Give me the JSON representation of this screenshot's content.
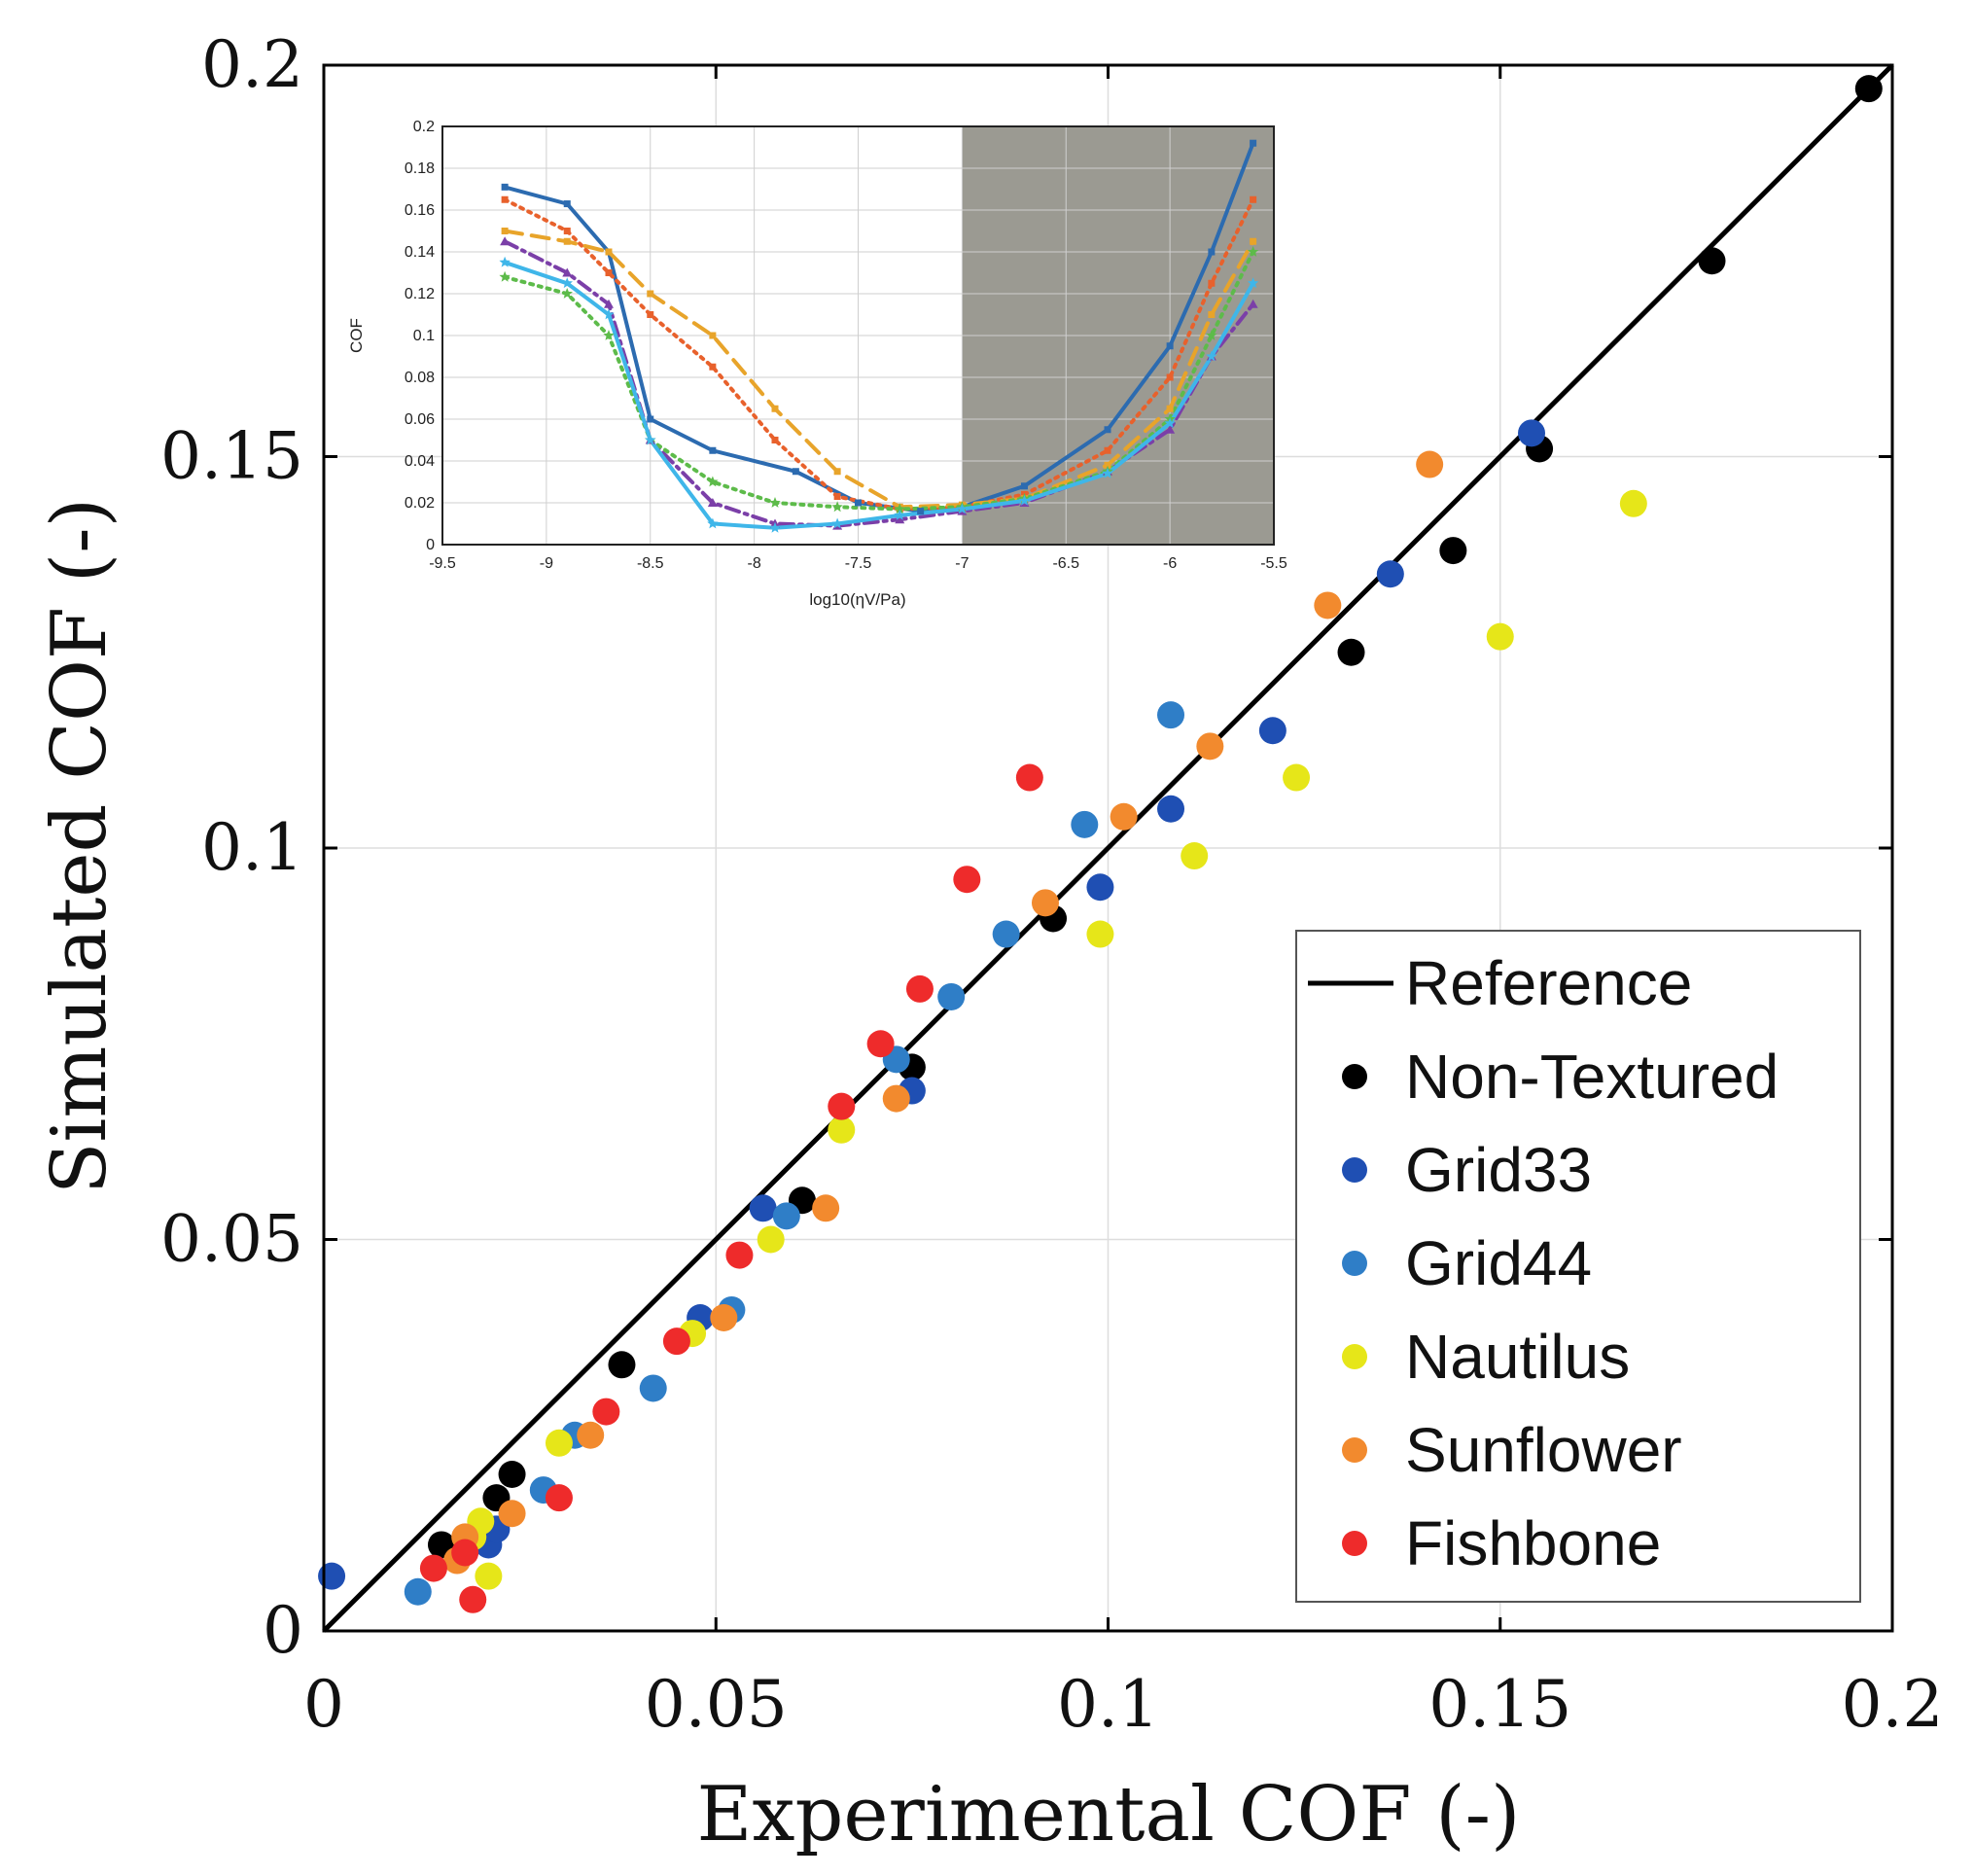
{
  "chart_data": [
    {
      "type": "scatter",
      "xlabel": "Experimental COF (-)",
      "ylabel": "Simulated COF (-)",
      "xlim": [
        0,
        0.2
      ],
      "ylim": [
        0,
        0.2
      ],
      "xticks": [
        "0",
        "0.05",
        "0.1",
        "0.15",
        "0.2"
      ],
      "yticks": [
        "0",
        "0.05",
        "0.1",
        "0.15",
        "0.2"
      ],
      "grid": true,
      "legend_position": "bottom-right",
      "reference": {
        "name": "Reference",
        "color": "#000000",
        "x": [
          0,
          0.2
        ],
        "y": [
          0,
          0.2
        ]
      },
      "series": [
        {
          "name": "Non-Textured",
          "color": "#000000",
          "points": [
            [
              0.197,
              0.197
            ],
            [
              0.177,
              0.175
            ],
            [
              0.155,
              0.151
            ],
            [
              0.144,
              0.138
            ],
            [
              0.131,
              0.125
            ],
            [
              0.093,
              0.091
            ],
            [
              0.075,
              0.072
            ],
            [
              0.061,
              0.055
            ],
            [
              0.038,
              0.034
            ],
            [
              0.024,
              0.02
            ],
            [
              0.022,
              0.017
            ],
            [
              0.015,
              0.011
            ]
          ]
        },
        {
          "name": "Grid33",
          "color": "#1f4fb3",
          "points": [
            [
              0.154,
              0.153
            ],
            [
              0.136,
              0.135
            ],
            [
              0.121,
              0.115
            ],
            [
              0.108,
              0.105
            ],
            [
              0.099,
              0.095
            ],
            [
              0.075,
              0.069
            ],
            [
              0.056,
              0.054
            ],
            [
              0.048,
              0.04
            ],
            [
              0.021,
              0.011
            ],
            [
              0.001,
              0.007
            ],
            [
              0.022,
              0.013
            ]
          ]
        },
        {
          "name": "Grid44",
          "color": "#2f7ec7",
          "points": [
            [
              0.108,
              0.117
            ],
            [
              0.097,
              0.103
            ],
            [
              0.087,
              0.089
            ],
            [
              0.08,
              0.081
            ],
            [
              0.073,
              0.073
            ],
            [
              0.059,
              0.053
            ],
            [
              0.052,
              0.041
            ],
            [
              0.042,
              0.031
            ],
            [
              0.032,
              0.025
            ],
            [
              0.028,
              0.018
            ],
            [
              0.012,
              0.005
            ]
          ]
        },
        {
          "name": "Nautilus",
          "color": "#e6e619",
          "points": [
            [
              0.167,
              0.144
            ],
            [
              0.15,
              0.127
            ],
            [
              0.124,
              0.109
            ],
            [
              0.111,
              0.099
            ],
            [
              0.099,
              0.089
            ],
            [
              0.066,
              0.064
            ],
            [
              0.057,
              0.05
            ],
            [
              0.047,
              0.038
            ],
            [
              0.03,
              0.024
            ],
            [
              0.02,
              0.014
            ],
            [
              0.021,
              0.007
            ],
            [
              0.019,
              0.012
            ]
          ]
        },
        {
          "name": "Sunflower",
          "color": "#f28a2e",
          "points": [
            [
              0.141,
              0.149
            ],
            [
              0.128,
              0.131
            ],
            [
              0.113,
              0.113
            ],
            [
              0.102,
              0.104
            ],
            [
              0.092,
              0.093
            ],
            [
              0.073,
              0.068
            ],
            [
              0.064,
              0.054
            ],
            [
              0.051,
              0.04
            ],
            [
              0.034,
              0.025
            ],
            [
              0.024,
              0.015
            ],
            [
              0.018,
              0.012
            ],
            [
              0.017,
              0.009
            ]
          ]
        },
        {
          "name": "Fishbone",
          "color": "#ee2b2b",
          "points": [
            [
              0.09,
              0.109
            ],
            [
              0.082,
              0.096
            ],
            [
              0.076,
              0.082
            ],
            [
              0.071,
              0.075
            ],
            [
              0.066,
              0.067
            ],
            [
              0.053,
              0.048
            ],
            [
              0.045,
              0.037
            ],
            [
              0.036,
              0.028
            ],
            [
              0.03,
              0.017
            ],
            [
              0.018,
              0.01
            ],
            [
              0.014,
              0.008
            ],
            [
              0.019,
              0.004
            ]
          ]
        }
      ]
    },
    {
      "type": "line",
      "role": "inset",
      "xlabel": "log10(ηV/Pa)",
      "ylabel": "COF",
      "xlim": [
        -9.5,
        -5.5
      ],
      "ylim": [
        0,
        0.2
      ],
      "xticks": [
        "-9.5",
        "-9",
        "-8.5",
        "-8",
        "-7.5",
        "-7",
        "-6.5",
        "-6",
        "-5.5"
      ],
      "yticks": [
        "0",
        "0.02",
        "0.04",
        "0.06",
        "0.08",
        "0.1",
        "0.12",
        "0.14",
        "0.16",
        "0.18",
        "0.2"
      ],
      "shaded_region_x": [
        -7,
        -5.5
      ],
      "shade_color": "#9b9a92",
      "series": [
        {
          "name": "Grid33",
          "color": "#2c6bb0",
          "style": "solid",
          "marker": "square",
          "x": [
            -9.2,
            -8.9,
            -8.7,
            -8.5,
            -8.2,
            -7.8,
            -7.5,
            -7.2,
            -7.0,
            -6.7,
            -6.3,
            -6.0,
            -5.8,
            -5.6
          ],
          "y": [
            0.171,
            0.163,
            0.14,
            0.06,
            0.045,
            0.035,
            0.02,
            0.016,
            0.018,
            0.028,
            0.055,
            0.095,
            0.14,
            0.192
          ]
        },
        {
          "name": "Sunflower",
          "color": "#e8612c",
          "style": "dotted",
          "marker": "square",
          "x": [
            -9.2,
            -8.9,
            -8.7,
            -8.5,
            -8.2,
            -7.9,
            -7.6,
            -7.3,
            -7.0,
            -6.7,
            -6.3,
            -6.0,
            -5.8,
            -5.6
          ],
          "y": [
            0.165,
            0.15,
            0.13,
            0.11,
            0.085,
            0.05,
            0.023,
            0.017,
            0.018,
            0.024,
            0.045,
            0.08,
            0.125,
            0.165
          ]
        },
        {
          "name": "Nautilus",
          "color": "#e8a42a",
          "style": "dashed",
          "marker": "square",
          "x": [
            -9.2,
            -8.9,
            -8.7,
            -8.5,
            -8.2,
            -7.9,
            -7.6,
            -7.3,
            -7.0,
            -6.7,
            -6.3,
            -6.0,
            -5.8,
            -5.6
          ],
          "y": [
            0.15,
            0.145,
            0.14,
            0.12,
            0.1,
            0.065,
            0.035,
            0.018,
            0.019,
            0.022,
            0.038,
            0.065,
            0.11,
            0.145
          ]
        },
        {
          "name": "Grid44",
          "color": "#7b3fa8",
          "style": "dashdot",
          "marker": "triangle",
          "x": [
            -9.2,
            -8.9,
            -8.7,
            -8.5,
            -8.2,
            -7.9,
            -7.6,
            -7.3,
            -7.0,
            -6.7,
            -6.3,
            -6.0,
            -5.8,
            -5.6
          ],
          "y": [
            0.145,
            0.13,
            0.115,
            0.05,
            0.02,
            0.01,
            0.009,
            0.012,
            0.016,
            0.02,
            0.035,
            0.055,
            0.09,
            0.115
          ]
        },
        {
          "name": "Fishbone",
          "color": "#5dbb4a",
          "style": "dotted",
          "marker": "star",
          "x": [
            -9.2,
            -8.9,
            -8.7,
            -8.5,
            -8.2,
            -7.9,
            -7.6,
            -7.3,
            -7.0,
            -6.7,
            -6.3,
            -6.0,
            -5.8,
            -5.6
          ],
          "y": [
            0.128,
            0.12,
            0.1,
            0.05,
            0.03,
            0.02,
            0.018,
            0.017,
            0.018,
            0.022,
            0.035,
            0.06,
            0.1,
            0.14
          ]
        },
        {
          "name": "Non-Textured",
          "color": "#3fb6e9",
          "style": "solid",
          "marker": "star",
          "x": [
            -9.2,
            -8.9,
            -8.7,
            -8.5,
            -8.2,
            -7.9,
            -7.6,
            -7.3,
            -7.0,
            -6.7,
            -6.3,
            -6.0,
            -5.8,
            -5.6
          ],
          "y": [
            0.135,
            0.125,
            0.11,
            0.05,
            0.01,
            0.008,
            0.01,
            0.014,
            0.017,
            0.021,
            0.034,
            0.058,
            0.09,
            0.125
          ]
        }
      ]
    }
  ]
}
